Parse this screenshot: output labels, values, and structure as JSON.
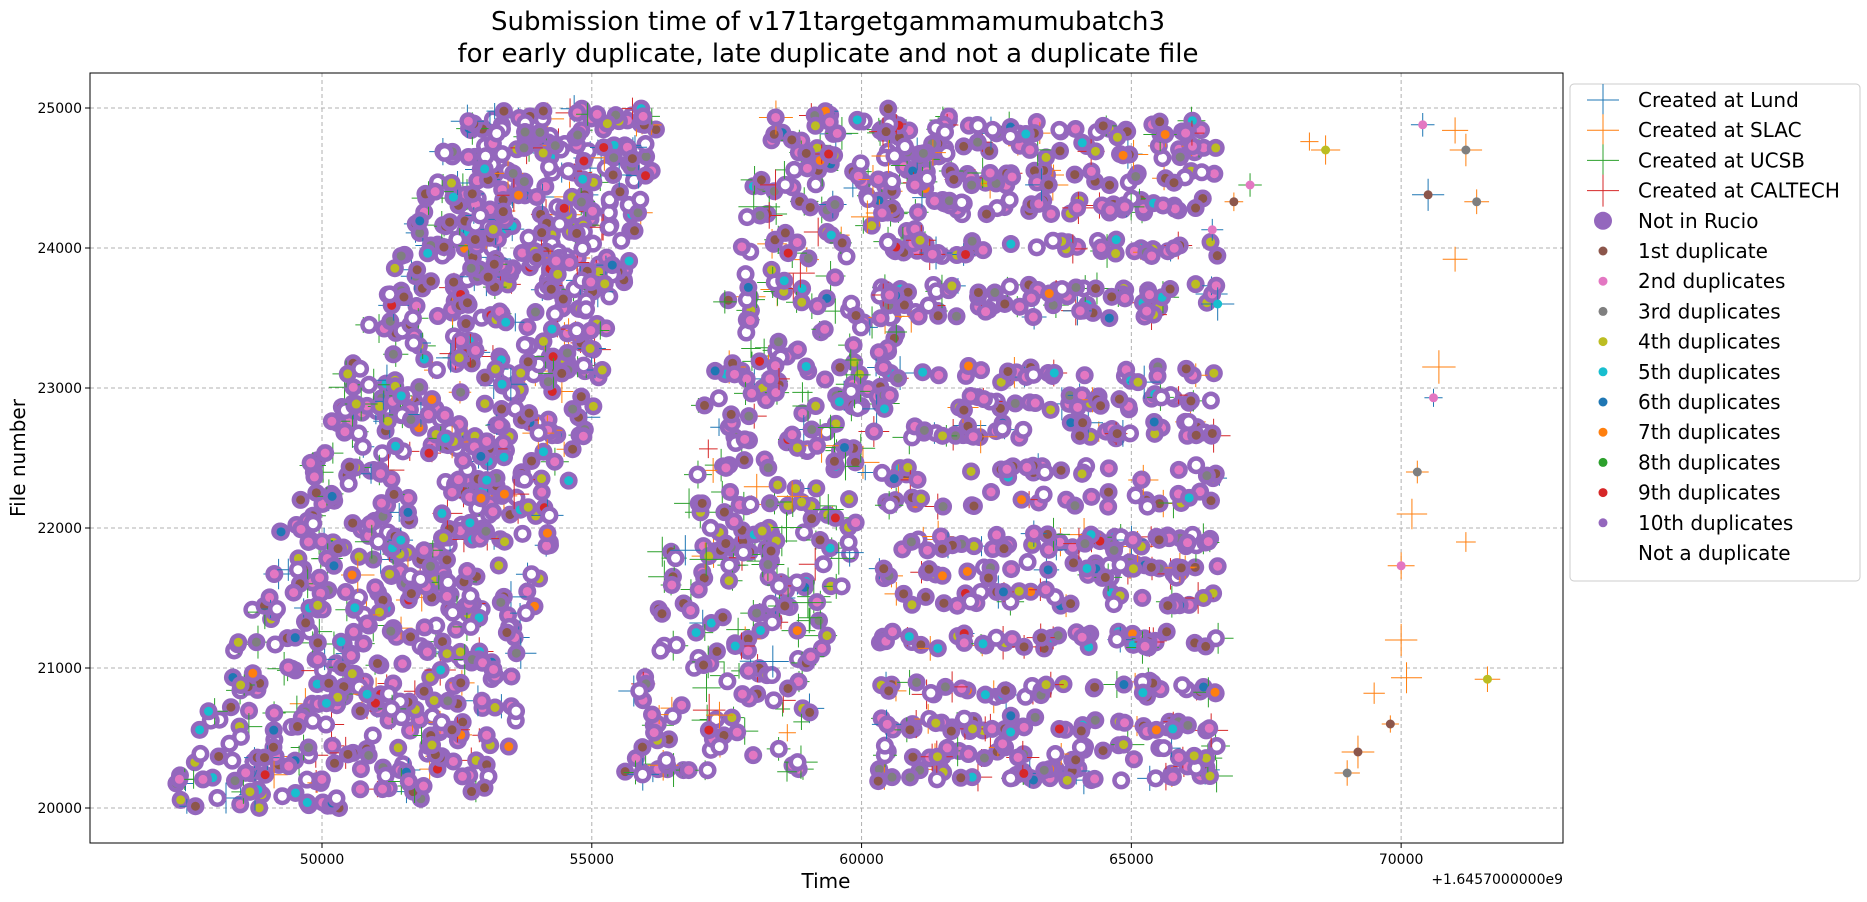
{
  "chart_data": {
    "type": "scatter",
    "title": [
      "Submission time of v171targetgammamumubatch3",
      "for early duplicate, late duplicate and not a duplicate file"
    ],
    "xlabel": "Time",
    "ylabel": "File number",
    "x_offset_label": "+1.6457000000e9",
    "x_offset": 1645700000,
    "xlim": [
      45700,
      73000
    ],
    "ylim": [
      19750,
      25250
    ],
    "xticks": [
      50000,
      55000,
      60000,
      65000,
      70000
    ],
    "yticks": [
      20000,
      21000,
      22000,
      23000,
      24000,
      25000
    ],
    "grid": true,
    "legend_position": "outside-right",
    "legend": [
      {
        "label": "Created at Lund",
        "marker": "plus",
        "color": "#1f77b4"
      },
      {
        "label": "Created at SLAC",
        "marker": "plus",
        "color": "#ff7f0e"
      },
      {
        "label": "Created at UCSB",
        "marker": "plus",
        "color": "#2ca02c"
      },
      {
        "label": "Created at CALTECH",
        "marker": "plus",
        "color": "#d62728"
      },
      {
        "label": "Not in Rucio",
        "marker": "big-dot",
        "color": "#9467bd"
      },
      {
        "label": "1st duplicate",
        "marker": "dot",
        "color": "#8c564b"
      },
      {
        "label": "2nd duplicates",
        "marker": "dot",
        "color": "#e377c2"
      },
      {
        "label": "3rd duplicates",
        "marker": "dot",
        "color": "#7f7f7f"
      },
      {
        "label": "4th duplicates",
        "marker": "dot",
        "color": "#bcbd22"
      },
      {
        "label": "5th duplicates",
        "marker": "dot",
        "color": "#17becf"
      },
      {
        "label": "6th duplicates",
        "marker": "dot",
        "color": "#1f77b4"
      },
      {
        "label": "7th duplicates",
        "marker": "dot",
        "color": "#ff7f0e"
      },
      {
        "label": "8th duplicates",
        "marker": "dot",
        "color": "#2ca02c"
      },
      {
        "label": "9th duplicates",
        "marker": "dot",
        "color": "#d62728"
      },
      {
        "label": "10th duplicates",
        "marker": "dot",
        "color": "#9467bd"
      },
      {
        "label": "Not a duplicate",
        "marker": "dot",
        "color": "#ffffff"
      }
    ],
    "point_clusters": [
      {
        "name": "early-band",
        "x_range_start": [
          47000,
          52500
        ],
        "x_range_end": [
          53500,
          56500
        ],
        "y_range": [
          20000,
          25000
        ]
      },
      {
        "name": "middle-band",
        "x_range_start": [
          55500,
          58500
        ],
        "x_range_end": [
          58500,
          62000
        ],
        "y_range": [
          20200,
          25000
        ]
      },
      {
        "name": "late-band",
        "x_range": [
          60500,
          66800
        ],
        "y_range": [
          20200,
          25000
        ]
      },
      {
        "name": "tail",
        "x_range": [
          68500,
          71800
        ],
        "y_range": [
          20200,
          24900
        ]
      }
    ]
  }
}
